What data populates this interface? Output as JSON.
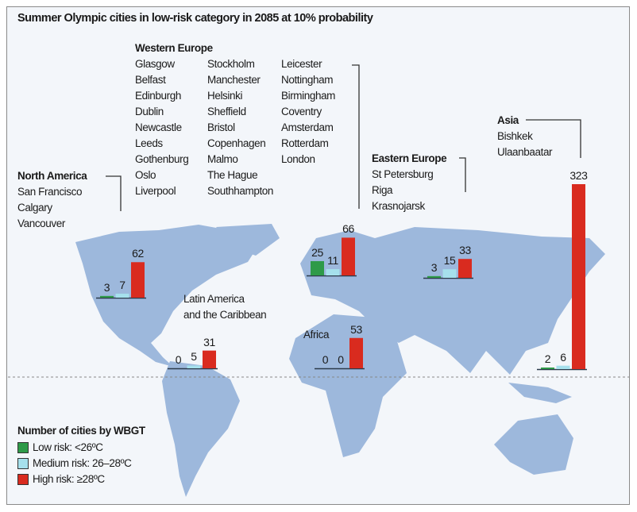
{
  "chart_data": {
    "type": "bar",
    "title": "Summer Olympic cities in low-risk category in 2085 at 10% probability",
    "legend_title": "Number of cities by WBGT",
    "legend_placement": "bottom-left",
    "series": [
      {
        "name": "Low risk: <26ºC",
        "color": "#2e9a48"
      },
      {
        "name": "Medium risk: 26–28ºC",
        "color": "#a6e0ec"
      },
      {
        "name": "High risk: ≥28ºC",
        "color": "#d92b1f"
      }
    ],
    "regions": [
      {
        "name": "North America",
        "values": [
          3,
          7,
          62
        ],
        "low_risk_cities": [
          "San Francisco",
          "Calgary",
          "Vancouver"
        ]
      },
      {
        "name": "Latin America and the Caribbean",
        "label_lines": [
          "Latin America",
          "and the Caribbean"
        ],
        "values": [
          0,
          5,
          31
        ]
      },
      {
        "name": "Western Europe",
        "values": [
          25,
          11,
          66
        ],
        "low_risk_cities": [
          "Glasgow",
          "Belfast",
          "Edinburgh",
          "Dublin",
          "Newcastle",
          "Leeds",
          "Gothenburg",
          "Oslo",
          "Liverpool",
          "Stockholm",
          "Manchester",
          "Helsinki",
          "Sheffield",
          "Bristol",
          "Copenhagen",
          "Malmo",
          "The Hague",
          "Southhampton",
          "Leicester",
          "Nottingham",
          "Birmingham",
          "Coventry",
          "Amsterdam",
          "Rotterdam",
          "London"
        ]
      },
      {
        "name": "Africa",
        "values": [
          0,
          0,
          53
        ]
      },
      {
        "name": "Eastern Europe",
        "values": [
          3,
          15,
          33
        ],
        "low_risk_cities": [
          "St Petersburg",
          "Riga",
          "Krasnojarsk"
        ]
      },
      {
        "name": "Asia",
        "values": [
          2,
          6,
          323
        ],
        "low_risk_cities": [
          "Bishkek",
          "Ulaanbaatar"
        ]
      }
    ]
  }
}
